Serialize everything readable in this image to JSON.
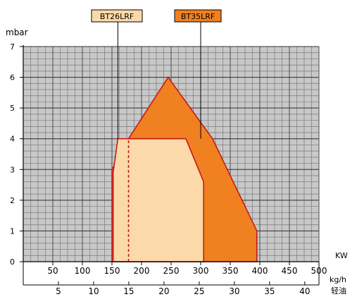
{
  "chart_data": {
    "type": "area",
    "title": "",
    "ylabel": "mbar",
    "ylim": [
      0,
      7
    ],
    "yticks": [
      "0",
      "1",
      "2",
      "3",
      "4",
      "5",
      "6",
      "7"
    ],
    "xlabel_kw": "KW",
    "xlim_kw": [
      0,
      500
    ],
    "xticks_kw": [
      "50",
      "100",
      "150",
      "200",
      "250",
      "300",
      "350",
      "400",
      "450",
      "500"
    ],
    "xlabel_kgh": "kg/h",
    "xlabel_kgh_2": "轻油",
    "xticks_kgh": [
      "5",
      "10",
      "15",
      "20",
      "25",
      "30",
      "35",
      "40"
    ],
    "grid": true,
    "series": [
      {
        "name": "BT35LRF",
        "color": "#f08020",
        "points": [
          [
            150,
            0
          ],
          [
            150,
            3
          ],
          [
            178,
            4
          ],
          [
            245,
            6
          ],
          [
            320,
            4
          ],
          [
            395,
            1
          ],
          [
            395,
            0
          ]
        ]
      },
      {
        "name": "BT26LRF",
        "color": "#fcd9a8",
        "points": [
          [
            152,
            0
          ],
          [
            152,
            2.9
          ],
          [
            160,
            4
          ],
          [
            275,
            4
          ],
          [
            305,
            2.6
          ],
          [
            305,
            0
          ]
        ]
      }
    ],
    "annotations": [
      {
        "kind": "dashed-line",
        "x": 178,
        "y_range": [
          0,
          4
        ]
      }
    ]
  }
}
